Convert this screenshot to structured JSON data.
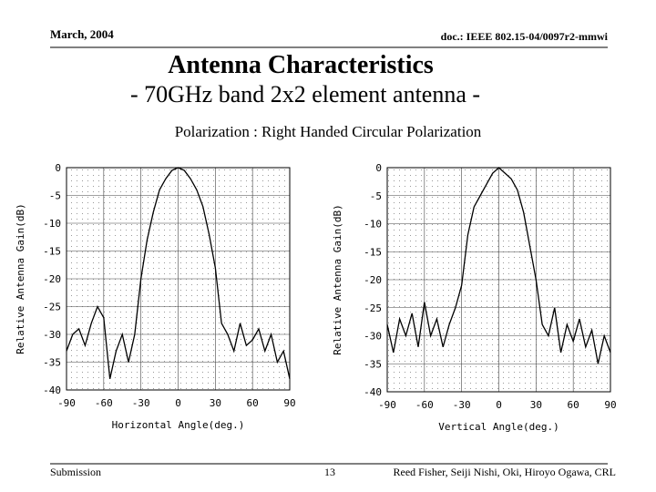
{
  "header": {
    "date": "March, 2004",
    "doc": "doc.: IEEE 802.15-04/0097r2-mmwi"
  },
  "title": "Antenna Characteristics",
  "subtitle": "- 70GHz band 2x2 element antenna -",
  "caption": "Polarization : Right Handed Circular Polarization",
  "chart_data": [
    {
      "type": "line",
      "x_label": "Horizontal Angle(deg.)",
      "y_label": "Relative Antenna Gain(dB)",
      "x": [
        -90,
        -85,
        -80,
        -75,
        -70,
        -65,
        -60,
        -55,
        -50,
        -45,
        -40,
        -35,
        -30,
        -25,
        -20,
        -15,
        -10,
        -5,
        0,
        5,
        10,
        15,
        20,
        25,
        30,
        35,
        40,
        45,
        50,
        55,
        60,
        65,
        70,
        75,
        80,
        85,
        90
      ],
      "values": [
        -33,
        -30,
        -29,
        -32,
        -28,
        -25,
        -27,
        -38,
        -33,
        -30,
        -35,
        -30,
        -20,
        -13,
        -8,
        -4,
        -2,
        -0.5,
        0,
        -0.5,
        -2,
        -4,
        -7,
        -12,
        -18,
        -28,
        -30,
        -33,
        -28,
        -32,
        -31,
        -29,
        -33,
        -30,
        -35,
        -33,
        -38
      ],
      "color": "#000000",
      "xlim": [
        -90,
        90
      ],
      "ylim": [
        -40,
        0
      ],
      "xticks": [
        -90,
        -60,
        -30,
        0,
        30,
        60,
        90
      ],
      "yticks": [
        0,
        -5,
        -10,
        -15,
        -20,
        -25,
        -30,
        -35,
        -40
      ],
      "grid": true
    },
    {
      "type": "line",
      "x_label": "Vertical Angle(deg.)",
      "y_label": "Relative Antenna Gain(dB)",
      "x": [
        -90,
        -85,
        -80,
        -75,
        -70,
        -65,
        -60,
        -55,
        -50,
        -45,
        -40,
        -35,
        -30,
        -25,
        -20,
        -15,
        -10,
        -5,
        0,
        5,
        10,
        15,
        20,
        25,
        30,
        35,
        40,
        45,
        50,
        55,
        60,
        65,
        70,
        75,
        80,
        85,
        90
      ],
      "values": [
        -28,
        -33,
        -27,
        -30,
        -26,
        -32,
        -24,
        -30,
        -27,
        -32,
        -28,
        -25,
        -21,
        -12,
        -7,
        -5,
        -3,
        -1,
        0,
        -1,
        -2,
        -4,
        -8,
        -14,
        -20,
        -28,
        -30,
        -25,
        -33,
        -28,
        -31,
        -27,
        -32,
        -29,
        -35,
        -30,
        -33
      ],
      "color": "#000000",
      "xlim": [
        -90,
        90
      ],
      "ylim": [
        -40,
        0
      ],
      "xticks": [
        -90,
        -60,
        -30,
        0,
        30,
        60,
        90
      ],
      "yticks": [
        0,
        -5,
        -10,
        -15,
        -20,
        -25,
        -30,
        -35,
        -40
      ],
      "grid": true
    }
  ],
  "footer": {
    "left": "Submission",
    "page": "13",
    "authors": "Reed Fisher, Seiji Nishi, Oki, Hiroyo Ogawa, CRL"
  }
}
